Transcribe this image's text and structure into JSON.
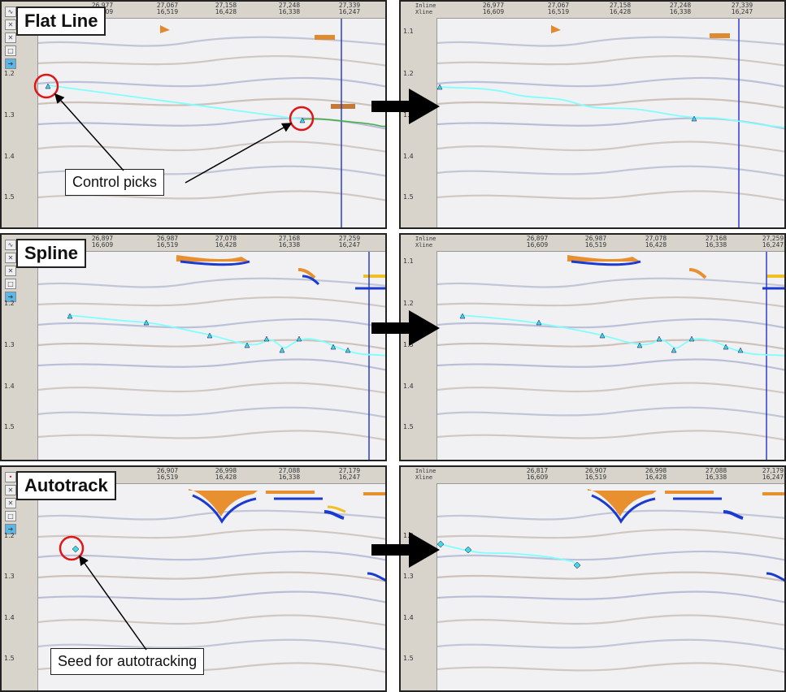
{
  "panels": {
    "flat_before": {
      "top_ticks": [
        {
          "l1": "26,977",
          "l2": "16,609"
        },
        {
          "l1": "27,067",
          "l2": "16,519"
        },
        {
          "l1": "27,158",
          "l2": "16,428"
        },
        {
          "l1": "27,248",
          "l2": "16,338"
        },
        {
          "l1": "27,339",
          "l2": "16,247"
        }
      ],
      "left_ticks": [
        "1.2",
        "1.3",
        "1.4",
        "1.5"
      ]
    },
    "flat_after": {
      "header": [
        "Inline",
        "Xline"
      ],
      "top_ticks": [
        {
          "l1": "26,977",
          "l2": "16,609"
        },
        {
          "l1": "27,067",
          "l2": "16,519"
        },
        {
          "l1": "27,158",
          "l2": "16,428"
        },
        {
          "l1": "27,248",
          "l2": "16,338"
        },
        {
          "l1": "27,339",
          "l2": "16,247"
        }
      ],
      "left_ticks": [
        "1.1",
        "1.2",
        "1.3",
        "1.4",
        "1.5"
      ]
    },
    "spline_before": {
      "top_ticks": [
        {
          "l1": "26,897",
          "l2": "16,609"
        },
        {
          "l1": "26,987",
          "l2": "16,519"
        },
        {
          "l1": "27,078",
          "l2": "16,428"
        },
        {
          "l1": "27,168",
          "l2": "16,338"
        },
        {
          "l1": "27,259",
          "l2": "16,247"
        }
      ],
      "left_ticks": [
        "1.2",
        "1.3",
        "1.4",
        "1.5"
      ]
    },
    "spline_after": {
      "header": [
        "Inline",
        "Xline"
      ],
      "top_ticks": [
        {
          "l1": "26,897",
          "l2": "16,609"
        },
        {
          "l1": "26,987",
          "l2": "16,519"
        },
        {
          "l1": "27,078",
          "l2": "16,428"
        },
        {
          "l1": "27,168",
          "l2": "16,338"
        },
        {
          "l1": "27,259",
          "l2": "16,247"
        }
      ],
      "left_ticks": [
        "1.1",
        "1.2",
        "1.3",
        "1.4",
        "1.5"
      ]
    },
    "auto_before": {
      "top_ticks": [
        {
          "l1": "26,907",
          "l2": "16,519"
        },
        {
          "l1": "26,998",
          "l2": "16,428"
        },
        {
          "l1": "27,088",
          "l2": "16,338"
        },
        {
          "l1": "27,179",
          "l2": "16,247"
        }
      ],
      "left_ticks": [
        "1.2",
        "1.3",
        "1.4",
        "1.5"
      ]
    },
    "auto_after": {
      "header": [
        "Inline",
        "Xline"
      ],
      "top_ticks": [
        {
          "l1": "26,817",
          "l2": "16,609"
        },
        {
          "l1": "26,907",
          "l2": "16,519"
        },
        {
          "l1": "26,998",
          "l2": "16,428"
        },
        {
          "l1": "27,088",
          "l2": "16,338"
        },
        {
          "l1": "27,179",
          "l2": "16,247"
        }
      ],
      "left_ticks": [
        "1.2",
        "1.3",
        "1.4",
        "1.5"
      ]
    }
  },
  "labels": {
    "flat_line": "Flat Line",
    "spline": "Spline",
    "autotrack": "Autotrack",
    "control_picks": "Control picks",
    "seed": "Seed for autotracking"
  },
  "colors": {
    "horizon": "#7fffff",
    "pick_marker": "#3fd8e0",
    "circle": "#e01515",
    "section_line": "#2030d0",
    "arrow": "#000000"
  }
}
